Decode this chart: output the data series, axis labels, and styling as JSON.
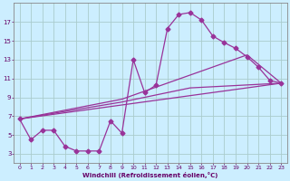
{
  "xlabel": "Windchill (Refroidissement éolien,°C)",
  "bg_color": "#cceeff",
  "grid_color": "#aacccc",
  "line_color": "#993399",
  "x_hours": [
    0,
    1,
    2,
    3,
    4,
    5,
    6,
    7,
    8,
    9,
    10,
    11,
    12,
    13,
    14,
    15,
    16,
    17,
    18,
    19,
    20,
    21,
    22,
    23
  ],
  "main_line": [
    6.7,
    4.5,
    5.5,
    5.5,
    3.8,
    3.3,
    3.3,
    3.3,
    6.5,
    5.2,
    13.0,
    9.5,
    10.3,
    16.3,
    17.8,
    18.0,
    17.2,
    15.5,
    14.8,
    14.2,
    13.3,
    12.2,
    10.8,
    10.5
  ],
  "straight_line1_x": [
    0,
    23
  ],
  "straight_line1_y": [
    6.7,
    10.5
  ],
  "straight_line2_x": [
    0,
    9,
    15,
    23
  ],
  "straight_line2_y": [
    6.7,
    8.5,
    10.0,
    10.5
  ],
  "straight_line3_x": [
    0,
    9,
    20,
    23
  ],
  "straight_line3_y": [
    6.7,
    8.8,
    13.5,
    10.5
  ],
  "ylim": [
    2.0,
    19.0
  ],
  "xlim": [
    -0.5,
    23.5
  ],
  "yticks": [
    3,
    5,
    7,
    9,
    11,
    13,
    15,
    17
  ],
  "xticks": [
    0,
    1,
    2,
    3,
    4,
    5,
    6,
    7,
    8,
    9,
    10,
    11,
    12,
    13,
    14,
    15,
    16,
    17,
    18,
    19,
    20,
    21,
    22,
    23
  ]
}
